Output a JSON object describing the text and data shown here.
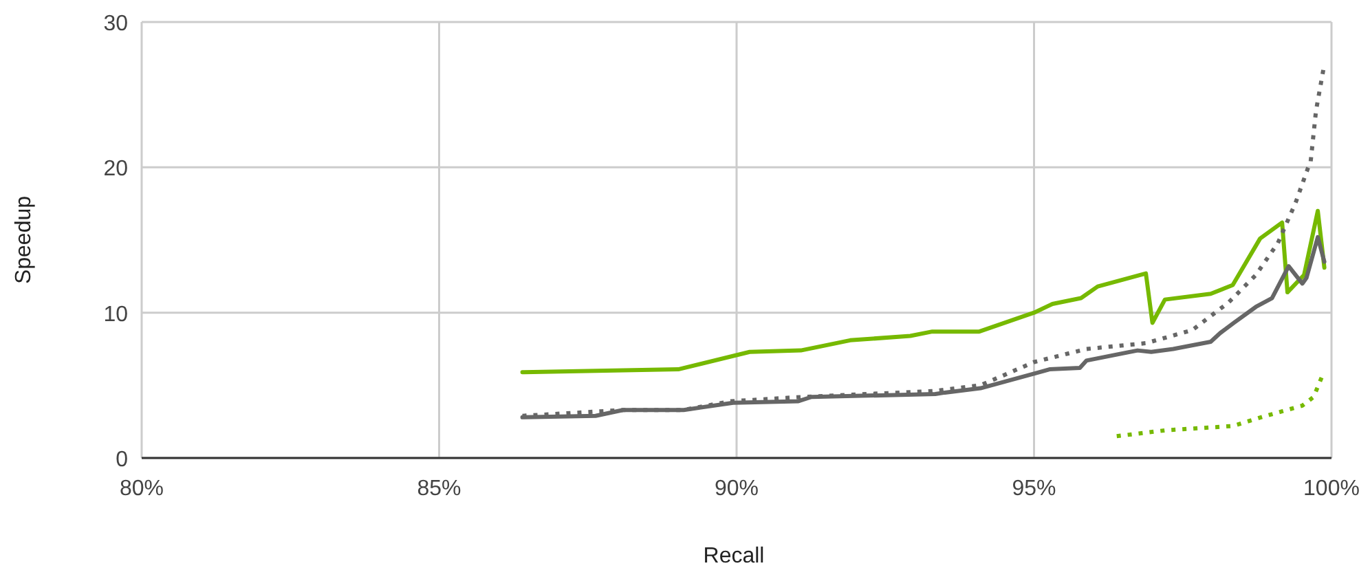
{
  "chart_data": {
    "type": "line",
    "xlabel": "Recall",
    "ylabel": "Speedup",
    "xlim": [
      80,
      100
    ],
    "ylim": [
      0,
      30
    ],
    "xticks": [
      {
        "value": 80,
        "label": "80%"
      },
      {
        "value": 85,
        "label": "85%"
      },
      {
        "value": 90,
        "label": "90%"
      },
      {
        "value": 95,
        "label": "95%"
      },
      {
        "value": 100,
        "label": "100%"
      }
    ],
    "yticks": [
      0,
      10,
      20,
      30
    ],
    "grid": true,
    "marker": "none",
    "series": [
      {
        "color": "#76b900",
        "line_style": "solid",
        "x": [
          86.4,
          89.02,
          90.22,
          91.08,
          91.91,
          92.92,
          93.29,
          94.08,
          95.0,
          95.31,
          95.79,
          96.07,
          96.88,
          96.99,
          97.2,
          97.97,
          98.34,
          98.8,
          99.17,
          99.26,
          99.54,
          99.77,
          99.88
        ],
        "values": [
          5.9,
          6.1,
          7.3,
          7.4,
          8.1,
          8.4,
          8.7,
          8.7,
          10.0,
          10.6,
          11.0,
          11.8,
          12.7,
          9.3,
          10.9,
          11.3,
          11.9,
          15.1,
          16.2,
          11.4,
          12.6,
          17.0,
          13.1
        ]
      },
      {
        "color": "#666666",
        "line_style": "solid",
        "x": [
          86.4,
          87.63,
          88.09,
          89.11,
          89.94,
          91.03,
          91.26,
          93.34,
          93.5,
          94.1,
          95.0,
          95.26,
          95.77,
          95.88,
          96.74,
          96.97,
          97.34,
          97.97,
          98.13,
          98.36,
          98.73,
          99.0,
          99.28,
          99.51,
          99.58,
          99.77,
          99.88
        ],
        "values": [
          2.8,
          2.9,
          3.3,
          3.3,
          3.8,
          3.9,
          4.2,
          4.4,
          4.5,
          4.8,
          5.8,
          6.1,
          6.2,
          6.7,
          7.4,
          7.3,
          7.5,
          8.0,
          8.6,
          9.3,
          10.4,
          11.0,
          13.2,
          12.0,
          12.4,
          15.2,
          13.5
        ]
      },
      {
        "color": "#666666",
        "line_style": "dotted",
        "x": [
          86.4,
          88.1,
          89.1,
          89.9,
          91.1,
          93.3,
          94.1,
          95.0,
          95.88,
          96.88,
          97.66,
          98.27,
          98.73,
          99.1,
          99.4,
          99.6,
          99.65,
          99.74,
          99.88
        ],
        "values": [
          2.9,
          3.3,
          3.3,
          3.9,
          4.2,
          4.6,
          5.0,
          6.6,
          7.5,
          7.9,
          8.8,
          10.7,
          12.6,
          14.8,
          17.6,
          19.9,
          20.4,
          23.9,
          27.1
        ]
      },
      {
        "color": "#76b900",
        "line_style": "dotted",
        "x": [
          96.39,
          97.2,
          98.34,
          98.9,
          99.51,
          99.7,
          99.85
        ],
        "values": [
          1.5,
          1.9,
          2.2,
          2.9,
          3.6,
          4.2,
          5.7
        ]
      }
    ]
  }
}
